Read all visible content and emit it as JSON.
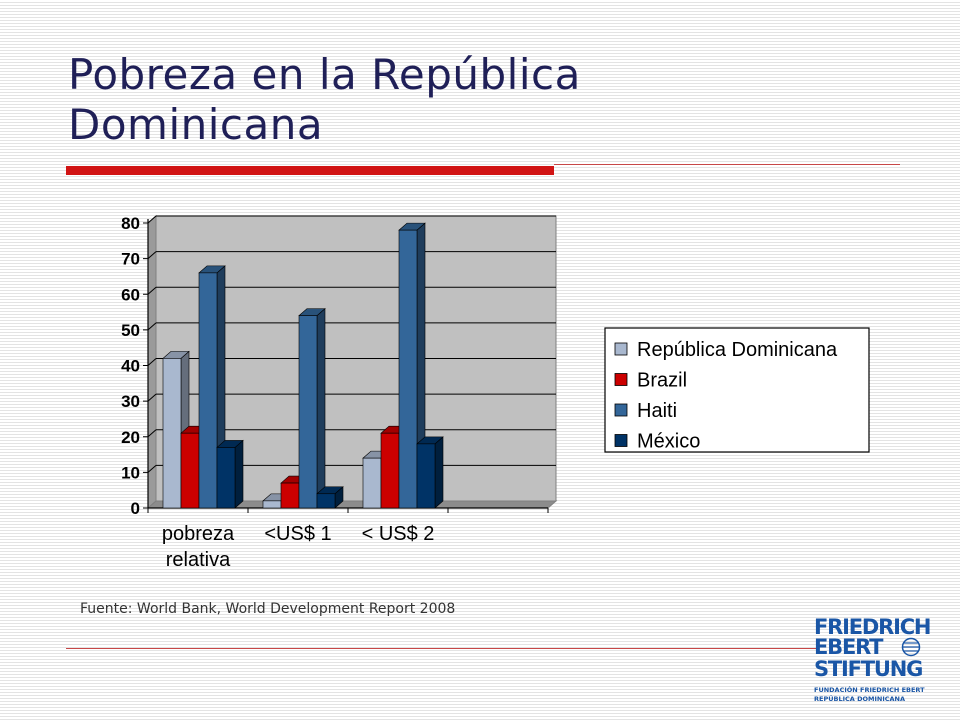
{
  "slide": {
    "title_line1": "Pobreza en la República",
    "title_line2": "Dominicana",
    "source": "Fuente: World Bank, World Development Report 2008"
  },
  "logo": {
    "line1": "FRIEDRICH",
    "line2": "EBERT",
    "line3": "STIFTUNG",
    "sub1": "FUNDACIÓN FRIEDRICH EBERT",
    "sub2": "REPÚBLICA DOMINICANA"
  },
  "colors": {
    "accent": "#d11414",
    "title": "#1f1f57",
    "plot_bg": "#c0c0c0",
    "logo": "#1a56a6"
  },
  "chart_data": {
    "type": "bar",
    "style": "3d-clustered-column",
    "categories": [
      "pobreza relativa",
      "<US$ 1",
      "< US$ 2",
      ""
    ],
    "category_lines": [
      [
        "pobreza",
        "relativa"
      ],
      [
        "<US$ 1"
      ],
      [
        "< US$ 2"
      ],
      [
        ""
      ]
    ],
    "series": [
      {
        "name": "República Dominicana",
        "color": "#a9b8cf",
        "values": [
          42,
          2,
          14,
          null
        ]
      },
      {
        "name": "Brazil",
        "color": "#cc0000",
        "values": [
          21,
          7,
          21,
          null
        ]
      },
      {
        "name": "Haiti",
        "color": "#336699",
        "values": [
          66,
          54,
          78,
          null
        ]
      },
      {
        "name": "México",
        "color": "#003366",
        "values": [
          17,
          4,
          18,
          null
        ]
      }
    ],
    "ylim": [
      0,
      80
    ],
    "yticks": [
      0,
      10,
      20,
      30,
      40,
      50,
      60,
      70,
      80
    ],
    "grid": true,
    "legend_position": "right",
    "title": "",
    "xlabel": "",
    "ylabel": ""
  }
}
